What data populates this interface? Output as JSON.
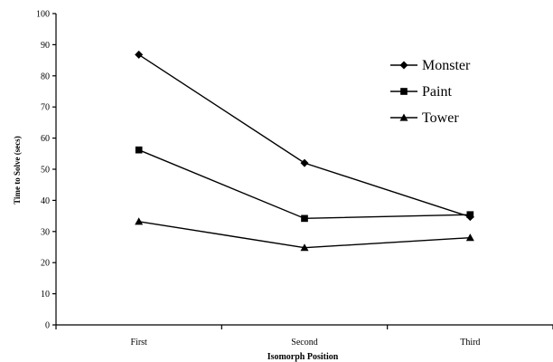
{
  "chart_data": {
    "type": "line",
    "categories": [
      "First",
      "Second",
      "Third"
    ],
    "series": [
      {
        "name": "Monster",
        "values": [
          86.8,
          52.0,
          34.7
        ],
        "marker": "diamond"
      },
      {
        "name": "Paint",
        "values": [
          56.2,
          34.2,
          35.4
        ],
        "marker": "square"
      },
      {
        "name": "Tower",
        "values": [
          33.2,
          24.8,
          28.0
        ],
        "marker": "triangle"
      }
    ],
    "xlabel": "Isomorph Position",
    "ylabel": "Time to Solve (secs)",
    "ylim": [
      0,
      100
    ],
    "yticks": [
      "0",
      "10",
      "20",
      "30",
      "40",
      "50",
      "60",
      "70",
      "80",
      "90",
      "100"
    ],
    "grid": false,
    "legend_placement": "top-right",
    "colors": {
      "line": "#000000",
      "marker": "#000000",
      "background": "#ffffff"
    }
  }
}
